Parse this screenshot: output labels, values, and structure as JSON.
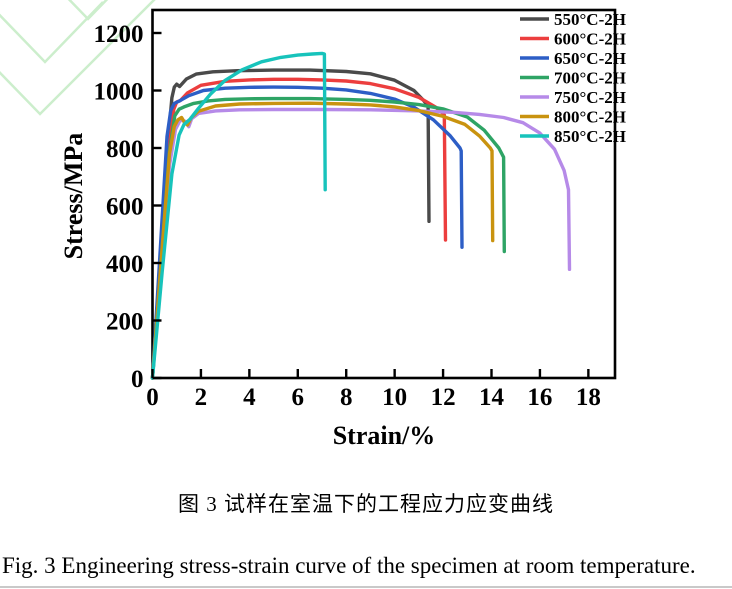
{
  "figure": {
    "caption_cn": "图 3  试样在室温下的工程应力应变曲线",
    "caption_en": "Fig. 3 Engineering stress-strain curve of the specimen at room temperature."
  },
  "chart_data": {
    "type": "line",
    "title": "",
    "xlabel": "Strain/%",
    "ylabel": "Stress/MPa",
    "xlim": [
      0,
      19.1
    ],
    "ylim": [
      0,
      1280
    ],
    "xticks": [
      0,
      2,
      4,
      6,
      8,
      10,
      12,
      14,
      16,
      18
    ],
    "yticks": [
      0,
      200,
      400,
      600,
      800,
      1000,
      1200
    ],
    "grid": false,
    "legend_position": "top-right-inside",
    "axis_color": "#000000",
    "watermark_color": "#cceecc",
    "series": [
      {
        "name": "550°C-2H",
        "color": "#4a4a4a",
        "points": [
          [
            0,
            0
          ],
          [
            0.35,
            450
          ],
          [
            0.65,
            830
          ],
          [
            0.8,
            975
          ],
          [
            0.9,
            1012
          ],
          [
            1.0,
            1022
          ],
          [
            1.12,
            1014
          ],
          [
            1.4,
            1040
          ],
          [
            1.8,
            1057
          ],
          [
            2.5,
            1065
          ],
          [
            3.5,
            1069
          ],
          [
            5,
            1071
          ],
          [
            6.5,
            1071
          ],
          [
            8,
            1066
          ],
          [
            9,
            1058
          ],
          [
            10,
            1036
          ],
          [
            10.8,
            1000
          ],
          [
            11.2,
            965
          ],
          [
            11.38,
            945
          ],
          [
            11.42,
            545
          ]
        ]
      },
      {
        "name": "600°C-2H",
        "color": "#ec3e3e",
        "points": [
          [
            0,
            0
          ],
          [
            0.35,
            400
          ],
          [
            0.7,
            810
          ],
          [
            0.88,
            935
          ],
          [
            1.0,
            960
          ],
          [
            1.15,
            965
          ],
          [
            1.45,
            992
          ],
          [
            2,
            1018
          ],
          [
            3,
            1032
          ],
          [
            4,
            1037
          ],
          [
            5,
            1039
          ],
          [
            6,
            1039
          ],
          [
            7,
            1037
          ],
          [
            8,
            1033
          ],
          [
            9,
            1024
          ],
          [
            10,
            1006
          ],
          [
            11,
            976
          ],
          [
            11.7,
            942
          ],
          [
            12.05,
            915
          ],
          [
            12.1,
            480
          ]
        ]
      },
      {
        "name": "650°C-2H",
        "color": "#2d5ec6",
        "points": [
          [
            0,
            0
          ],
          [
            0.3,
            420
          ],
          [
            0.6,
            840
          ],
          [
            0.75,
            930
          ],
          [
            0.9,
            955
          ],
          [
            1.1,
            963
          ],
          [
            1.5,
            982
          ],
          [
            2.1,
            1000
          ],
          [
            3,
            1008
          ],
          [
            4,
            1011
          ],
          [
            5,
            1012
          ],
          [
            6,
            1011
          ],
          [
            7,
            1008
          ],
          [
            8,
            1002
          ],
          [
            9,
            990
          ],
          [
            10,
            970
          ],
          [
            10.8,
            942
          ],
          [
            11.6,
            898
          ],
          [
            12.3,
            842
          ],
          [
            12.7,
            800
          ],
          [
            12.75,
            790
          ],
          [
            12.78,
            455
          ]
        ]
      },
      {
        "name": "700°C-2H",
        "color": "#2ea465",
        "points": [
          [
            0,
            0
          ],
          [
            0.35,
            400
          ],
          [
            0.7,
            790
          ],
          [
            0.92,
            912
          ],
          [
            1.1,
            935
          ],
          [
            1.3,
            943
          ],
          [
            1.7,
            955
          ],
          [
            2.3,
            964
          ],
          [
            3,
            969
          ],
          [
            4,
            971
          ],
          [
            5,
            972
          ],
          [
            6.5,
            972
          ],
          [
            8,
            969
          ],
          [
            9,
            966
          ],
          [
            10,
            960
          ],
          [
            11,
            951
          ],
          [
            12,
            936
          ],
          [
            13,
            908
          ],
          [
            13.7,
            862
          ],
          [
            14.3,
            800
          ],
          [
            14.5,
            768
          ],
          [
            14.53,
            440
          ]
        ]
      },
      {
        "name": "750°C-2H",
        "color": "#b68ae8",
        "points": [
          [
            0,
            0
          ],
          [
            0.35,
            380
          ],
          [
            0.7,
            740
          ],
          [
            0.95,
            865
          ],
          [
            1.15,
            897
          ],
          [
            1.35,
            893
          ],
          [
            1.5,
            874
          ],
          [
            1.62,
            902
          ],
          [
            1.9,
            920
          ],
          [
            2.6,
            929
          ],
          [
            3.6,
            933
          ],
          [
            5,
            934
          ],
          [
            7,
            934
          ],
          [
            9,
            933
          ],
          [
            11,
            929
          ],
          [
            12.5,
            924
          ],
          [
            13.5,
            917
          ],
          [
            14.5,
            906
          ],
          [
            15.3,
            888
          ],
          [
            16,
            852
          ],
          [
            16.6,
            796
          ],
          [
            17,
            722
          ],
          [
            17.18,
            655
          ],
          [
            17.22,
            378
          ]
        ]
      },
      {
        "name": "800°C-2H",
        "color": "#c9930f",
        "points": [
          [
            0,
            0
          ],
          [
            0.35,
            400
          ],
          [
            0.7,
            780
          ],
          [
            0.9,
            875
          ],
          [
            1.05,
            898
          ],
          [
            1.2,
            906
          ],
          [
            1.33,
            888
          ],
          [
            1.45,
            880
          ],
          [
            1.6,
            905
          ],
          [
            1.9,
            928
          ],
          [
            2.6,
            946
          ],
          [
            3.6,
            953
          ],
          [
            5,
            955
          ],
          [
            6.5,
            956
          ],
          [
            8,
            953
          ],
          [
            9,
            950
          ],
          [
            10,
            943
          ],
          [
            11,
            930
          ],
          [
            12,
            910
          ],
          [
            12.9,
            882
          ],
          [
            13.5,
            842
          ],
          [
            13.95,
            800
          ],
          [
            14.02,
            790
          ],
          [
            14.05,
            478
          ]
        ]
      },
      {
        "name": "850°C-2H",
        "color": "#17c3bb",
        "points": [
          [
            0,
            0
          ],
          [
            0.4,
            370
          ],
          [
            0.8,
            710
          ],
          [
            1.1,
            845
          ],
          [
            1.3,
            882
          ],
          [
            1.55,
            900
          ],
          [
            1.9,
            938
          ],
          [
            2.4,
            988
          ],
          [
            3,
            1035
          ],
          [
            3.7,
            1072
          ],
          [
            4.5,
            1100
          ],
          [
            5.3,
            1115
          ],
          [
            6,
            1123
          ],
          [
            6.6,
            1127
          ],
          [
            7.0,
            1129
          ],
          [
            7.1,
            1127
          ],
          [
            7.13,
            655
          ]
        ]
      }
    ]
  }
}
